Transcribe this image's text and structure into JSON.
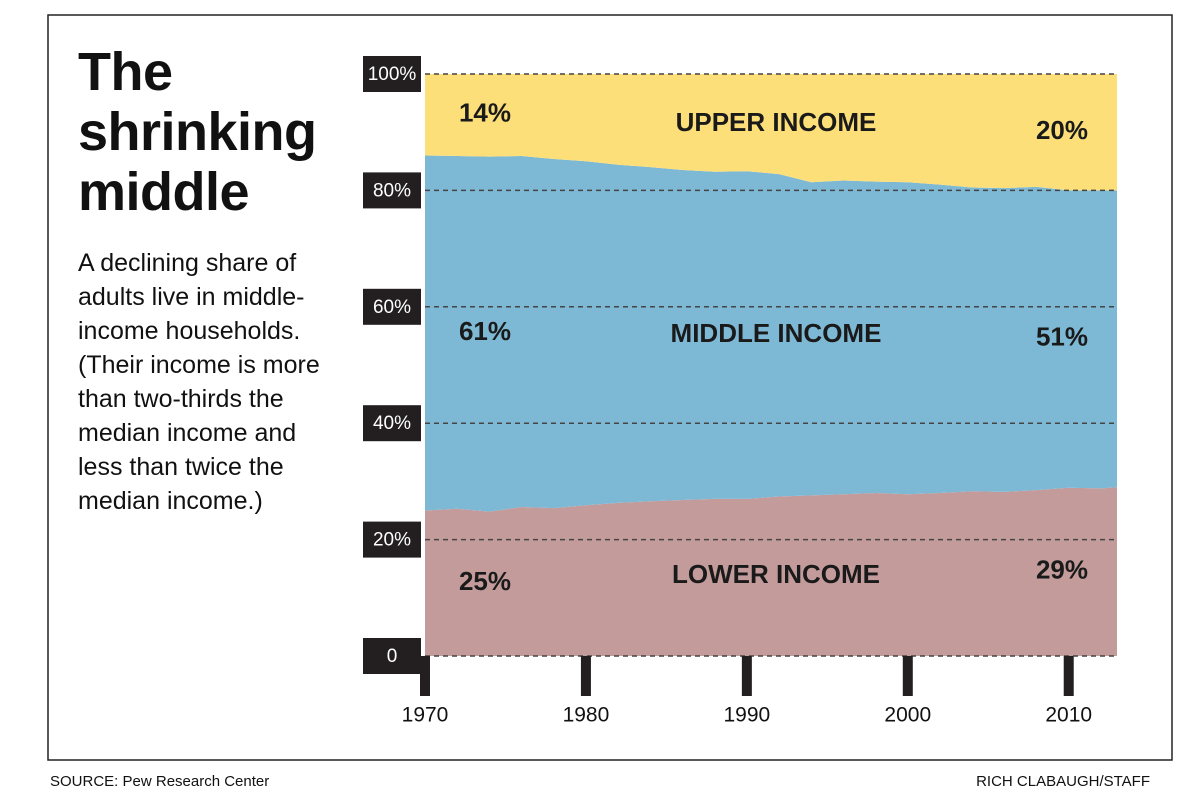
{
  "chart_data": {
    "type": "stacked-area",
    "title": "The shrinking middle",
    "subtitle": "A declining share of adults live in middle-income households. (Their income is more than two-thirds the median income and less than twice the median income.)",
    "source": "SOURCE: Pew Research Center",
    "credit": "RICH CLABAUGH/STAFF",
    "x": [
      1970,
      1972,
      1974,
      1976,
      1978,
      1980,
      1982,
      1984,
      1986,
      1988,
      1990,
      1992,
      1994,
      1996,
      1998,
      2000,
      2002,
      2004,
      2006,
      2008,
      2010,
      2012,
      2013
    ],
    "series": [
      {
        "name": "LOWER INCOME",
        "color": "#c49b9b",
        "values": [
          25,
          25.3,
          24.8,
          25.6,
          25.4,
          25.9,
          26.3,
          26.6,
          26.8,
          27,
          27,
          27.4,
          27.6,
          27.8,
          28,
          27.8,
          28,
          28.3,
          28.2,
          28.5,
          28.9,
          28.8,
          29
        ],
        "value_labels": [
          "25%",
          null,
          null,
          null,
          null,
          null,
          null,
          null,
          null,
          null,
          null,
          null,
          null,
          null,
          null,
          null,
          null,
          null,
          null,
          null,
          null,
          null,
          "29%"
        ]
      },
      {
        "name": "MIDDLE INCOME",
        "color": "#7db8d4",
        "values": [
          61,
          60.6,
          61,
          60.3,
          60,
          59.1,
          58.1,
          57.4,
          56.7,
          56.2,
          56.3,
          55.4,
          53.8,
          53.9,
          53.5,
          53.6,
          53,
          52.2,
          52.2,
          52.1,
          51.1,
          51.2,
          51
        ],
        "value_labels": [
          "61%",
          null,
          null,
          null,
          null,
          null,
          null,
          null,
          null,
          null,
          null,
          null,
          null,
          null,
          null,
          null,
          null,
          null,
          null,
          null,
          null,
          null,
          "51%"
        ]
      },
      {
        "name": "UPPER INCOME",
        "color": "#fddf7a",
        "values": [
          14,
          14.1,
          14.2,
          14.1,
          14.6,
          15,
          15.6,
          16,
          16.5,
          16.8,
          16.7,
          17.2,
          18.6,
          18.3,
          18.5,
          18.6,
          19,
          19.5,
          19.6,
          19.4,
          20,
          20,
          20
        ],
        "value_labels": [
          "14%",
          null,
          null,
          null,
          null,
          null,
          null,
          null,
          null,
          null,
          null,
          null,
          null,
          null,
          null,
          null,
          null,
          null,
          null,
          null,
          null,
          null,
          "20%"
        ]
      }
    ],
    "xlim": [
      1970,
      2013
    ],
    "xticks": [
      1970,
      1980,
      1990,
      2000,
      2010
    ],
    "ylim": [
      0,
      100
    ],
    "yticks": [
      0,
      {
        "value": 20,
        "label": "20%"
      },
      {
        "value": 40,
        "label": "40%"
      },
      {
        "value": 60,
        "label": "60%"
      },
      {
        "value": 80,
        "label": "80%"
      },
      {
        "value": 100,
        "label": "100%"
      }
    ],
    "grid": true
  }
}
